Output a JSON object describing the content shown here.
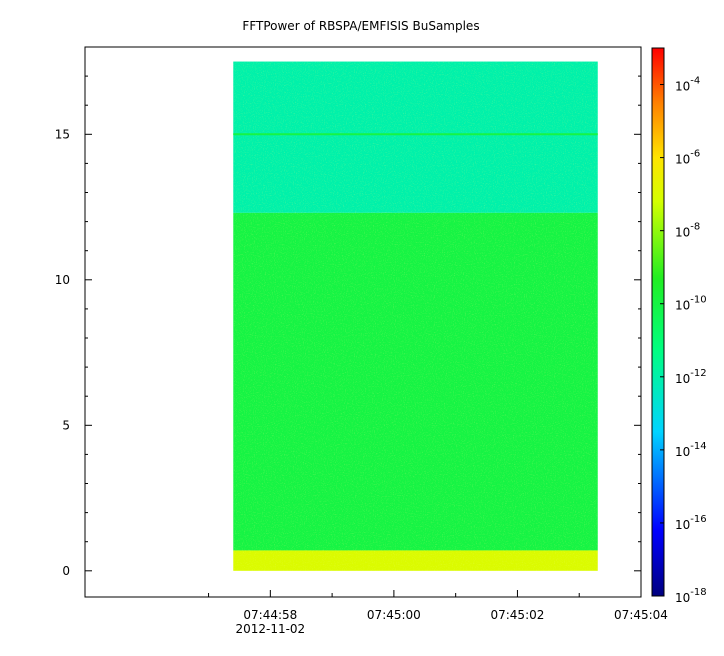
{
  "chart_data": {
    "type": "heatmap",
    "title": "FFTPower of RBSPA/EMFISIS  BuSamples",
    "xlabel": "",
    "ylabel": "",
    "x_ticks": [
      "07:44:58",
      "07:45:00",
      "07:45:02",
      "07:45:04"
    ],
    "x_date_label": "2012-11-02",
    "x_range_seconds_after_07_44_56": [
      -1.0,
      8.0
    ],
    "y_ticks": [
      0,
      5,
      10,
      15
    ],
    "ylim": [
      -0.9,
      18.0
    ],
    "data_extent": {
      "time_start": "07:44:57.4",
      "time_end": "07:45:03.3",
      "freq_min": 0.0,
      "freq_max": 17.5
    },
    "colorbar": {
      "scale": "log",
      "range": [
        1e-18,
        0.001
      ],
      "tick_values": [
        "10^-4",
        "10^-6",
        "10^-8",
        "10^-10",
        "10^-12",
        "10^-14",
        "10^-16",
        "10^-18"
      ],
      "tick_labels": [
        {
          "base": "10",
          "exp": "-4"
        },
        {
          "base": "10",
          "exp": "-6"
        },
        {
          "base": "10",
          "exp": "-8"
        },
        {
          "base": "10",
          "exp": "-10"
        },
        {
          "base": "10",
          "exp": "-12"
        },
        {
          "base": "10",
          "exp": "-14"
        },
        {
          "base": "10",
          "exp": "-16"
        },
        {
          "base": "10",
          "exp": "-18"
        }
      ]
    },
    "bands": [
      {
        "freq_from": 12.3,
        "freq_to": 17.5,
        "power": "1e-12"
      },
      {
        "freq_from": 0.7,
        "freq_to": 12.3,
        "power": "1e-10"
      },
      {
        "freq_from": 0.0,
        "freq_to": 0.7,
        "power": "1e-7"
      }
    ],
    "features": [
      {
        "freq": 15.0,
        "power": "1e-10"
      }
    ],
    "grid": false,
    "legend": "colorbar-right"
  }
}
